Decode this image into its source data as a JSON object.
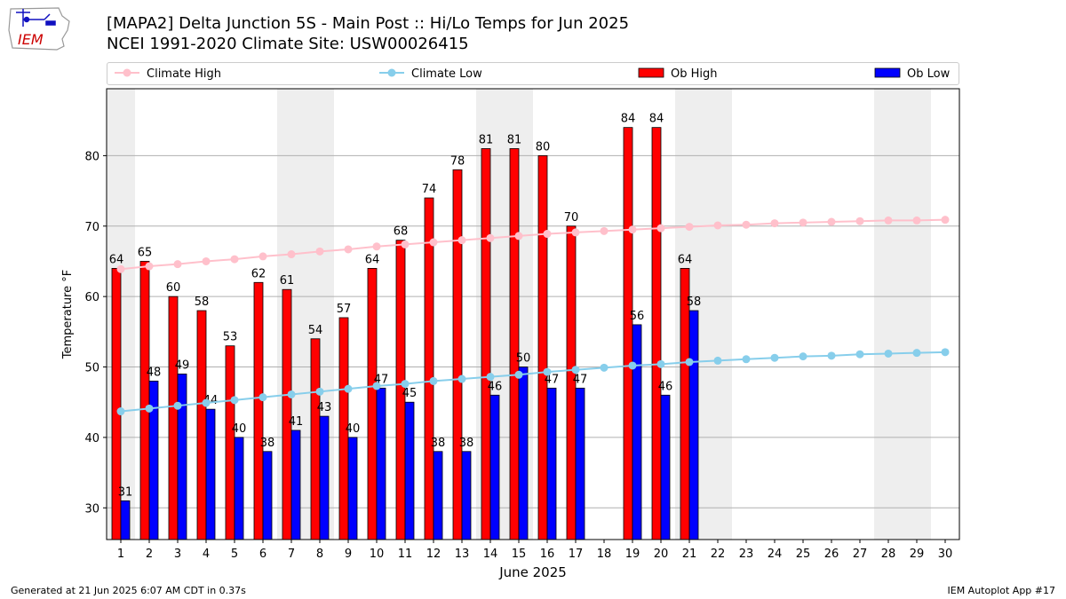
{
  "header": {
    "title_line1": "[MAPA2] Delta Junction 5S - Main Post :: Hi/Lo Temps for Jun 2025",
    "title_line2": "NCEI 1991-2020 Climate Site: USW00026415",
    "logo_text": "IEM"
  },
  "footer": {
    "left": "Generated at 21 Jun 2025 6:07 AM CDT in 0.37s",
    "right": "IEM Autoplot App #17"
  },
  "colors": {
    "ob_high": "#ff0000",
    "ob_low": "#0000ff",
    "climate_high": "#ffc0cb",
    "climate_low": "#87ceeb",
    "weekend_shade": "#eeeeee",
    "grid": "#b0b0b0"
  },
  "chart_data": {
    "type": "bar",
    "xlabel": "June 2025",
    "ylabel": "Temperature °F",
    "ylim": [
      25.5,
      89.5
    ],
    "yticks": [
      30,
      40,
      50,
      60,
      70,
      80
    ],
    "grid": "horizontal",
    "legend_placement": "top (horizontal row above plot)",
    "categories": [
      1,
      2,
      3,
      4,
      5,
      6,
      7,
      8,
      9,
      10,
      11,
      12,
      13,
      14,
      15,
      16,
      17,
      18,
      19,
      20,
      21,
      22,
      23,
      24,
      25,
      26,
      27,
      28,
      29,
      30
    ],
    "weekend_days": [
      [
        1,
        1
      ],
      [
        7,
        8
      ],
      [
        14,
        15
      ],
      [
        21,
        22
      ],
      [
        28,
        29
      ]
    ],
    "series": [
      {
        "name": "Climate High",
        "type": "line",
        "values": [
          63.9,
          64.3,
          64.6,
          65.0,
          65.3,
          65.7,
          66.0,
          66.4,
          66.7,
          67.1,
          67.4,
          67.7,
          68.0,
          68.3,
          68.6,
          68.9,
          69.1,
          69.3,
          69.5,
          69.7,
          69.9,
          70.1,
          70.2,
          70.4,
          70.5,
          70.6,
          70.7,
          70.8,
          70.8,
          70.9
        ]
      },
      {
        "name": "Climate Low",
        "type": "line",
        "values": [
          43.7,
          44.1,
          44.5,
          44.9,
          45.3,
          45.7,
          46.1,
          46.5,
          46.9,
          47.3,
          47.6,
          48.0,
          48.3,
          48.6,
          48.9,
          49.3,
          49.6,
          49.9,
          50.2,
          50.4,
          50.7,
          50.9,
          51.1,
          51.3,
          51.5,
          51.6,
          51.8,
          51.9,
          52.0,
          52.1
        ]
      },
      {
        "name": "Ob High",
        "type": "bar",
        "values": [
          64,
          65,
          60,
          58,
          53,
          62,
          61,
          54,
          57,
          64,
          68,
          74,
          78,
          81,
          81,
          80,
          70,
          null,
          84,
          84,
          64,
          null,
          null,
          null,
          null,
          null,
          null,
          null,
          null,
          null
        ]
      },
      {
        "name": "Ob Low",
        "type": "bar",
        "values": [
          31,
          48,
          49,
          44,
          40,
          38,
          41,
          43,
          40,
          47,
          45,
          38,
          38,
          46,
          50,
          47,
          47,
          null,
          56,
          46,
          58,
          null,
          null,
          null,
          null,
          null,
          null,
          null,
          null,
          null
        ]
      }
    ]
  }
}
